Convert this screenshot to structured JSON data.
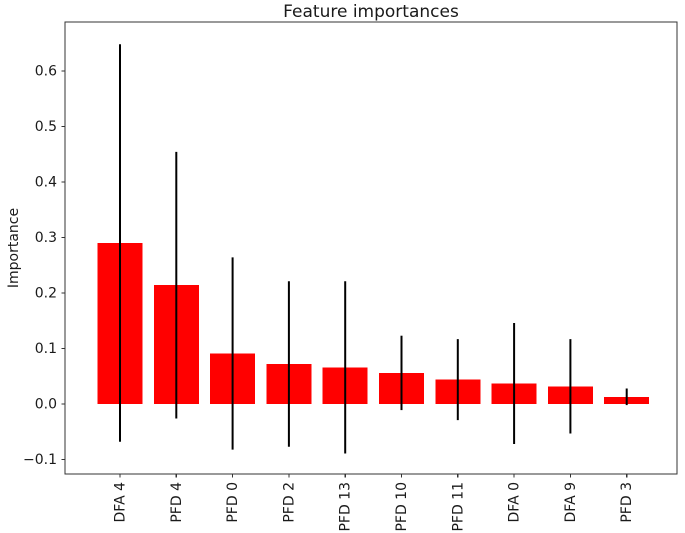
{
  "chart_data": {
    "type": "bar",
    "title": "Feature importances",
    "xlabel": "",
    "ylabel": "Importance",
    "categories": [
      "DFA 4",
      "PFD 4",
      "PFD 0",
      "PFD 2",
      "PFD 13",
      "PFD 10",
      "PFD 11",
      "DFA 0",
      "DFA 9",
      "PFD 3"
    ],
    "values": [
      0.29,
      0.214,
      0.091,
      0.072,
      0.066,
      0.056,
      0.044,
      0.037,
      0.032,
      0.013
    ],
    "errors": [
      0.358,
      0.24,
      0.173,
      0.149,
      0.155,
      0.067,
      0.073,
      0.109,
      0.085,
      0.015
    ],
    "error_style": "symmetric, no caps",
    "bar_color": "#ff0000",
    "error_bar_color": "#000000",
    "axis_color": "#333333",
    "yticks": [
      -0.1,
      0.0,
      0.1,
      0.2,
      0.3,
      0.4,
      0.5,
      0.6
    ],
    "ytick_labels": [
      "−0.1",
      "0.0",
      "0.1",
      "0.2",
      "0.3",
      "0.4",
      "0.5",
      "0.6"
    ],
    "ylim": [
      -0.126,
      0.688
    ],
    "grid": false,
    "legend": null,
    "x_tick_label_rotation": 90
  }
}
